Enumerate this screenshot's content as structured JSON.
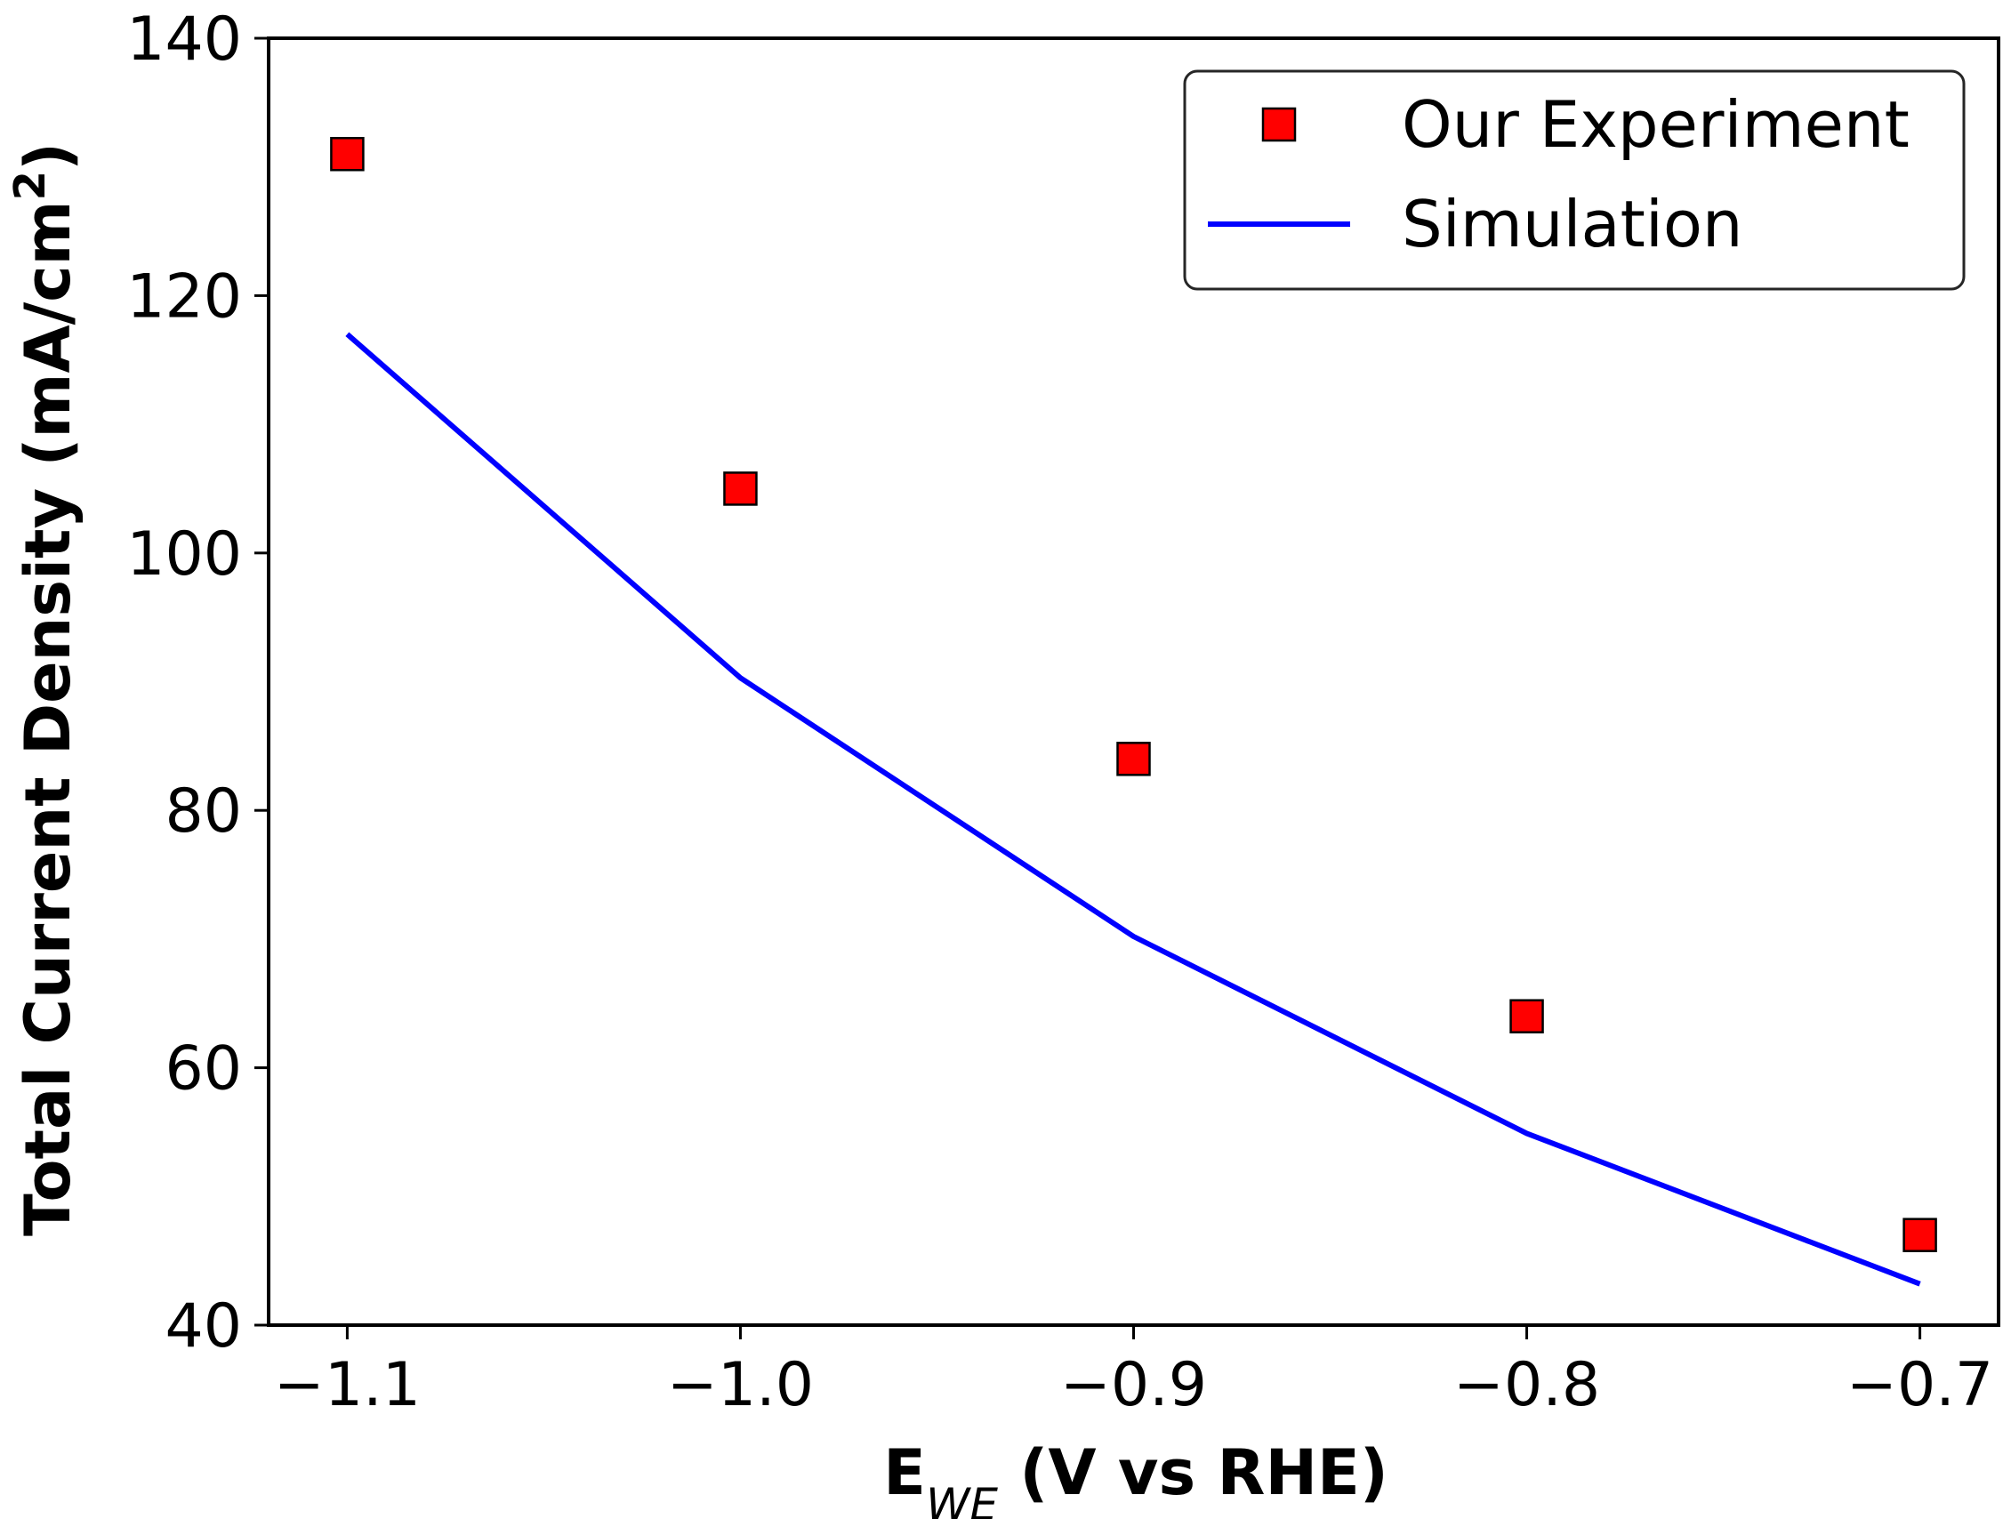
{
  "chart_data": {
    "type": "scatter",
    "title": "",
    "xlabel": {
      "main": "E",
      "sub": "WE",
      "rest": " (V vs RHE)"
    },
    "ylabel": {
      "main": "Total Current Density (mA/cm",
      "sup": "2",
      "close": ")"
    },
    "xlim": [
      -1.12,
      -0.68
    ],
    "ylim": [
      40,
      140
    ],
    "xticks": [
      -1.1,
      -1.0,
      -0.9,
      -0.8,
      -0.7
    ],
    "xtick_labels": [
      "−1.1",
      "−1.0",
      "−0.9",
      "−0.8",
      "−0.7"
    ],
    "yticks": [
      40,
      60,
      80,
      100,
      120,
      140
    ],
    "ytick_labels": [
      "40",
      "60",
      "80",
      "100",
      "120",
      "140"
    ],
    "grid": false,
    "legend_position": "top-right",
    "series": [
      {
        "name": "Our Experiment",
        "kind": "markers",
        "marker": "square",
        "color": "#ff0000",
        "edge_color": "#000000",
        "x": [
          -1.1,
          -1.0,
          -0.9,
          -0.8,
          -0.7
        ],
        "y": [
          131,
          105,
          84,
          64,
          47
        ]
      },
      {
        "name": "Simulation",
        "kind": "line",
        "color": "#0000ff",
        "x": [
          -1.1,
          -1.0,
          -0.9,
          -0.8,
          -0.7
        ],
        "y": [
          117,
          90.3,
          70.2,
          54.9,
          43.2
        ]
      }
    ]
  }
}
